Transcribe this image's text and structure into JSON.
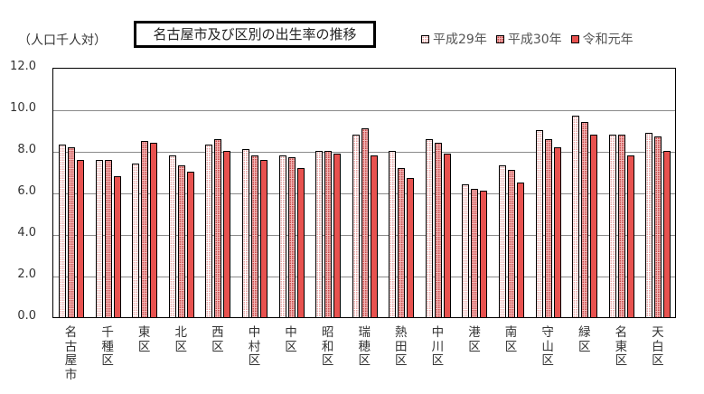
{
  "chart_data": {
    "type": "bar",
    "title": "名古屋市及び区別の出生率の推移",
    "ylabel": "（人口千人対）",
    "xlabel": "",
    "ylim": [
      0,
      12
    ],
    "yticks": [
      "0.0",
      "2.0",
      "4.0",
      "6.0",
      "8.0",
      "10.0",
      "12.0"
    ],
    "grid": true,
    "legend_position": "top-right",
    "categories": [
      "名古屋市",
      "千種区",
      "東区",
      "北区",
      "西区",
      "中村区",
      "中区",
      "昭和区",
      "瑞穂区",
      "熱田区",
      "中川区",
      "港区",
      "南区",
      "守山区",
      "緑区",
      "名東区",
      "天白区"
    ],
    "series": [
      {
        "name": "平成29年",
        "values": [
          8.3,
          7.6,
          7.4,
          7.8,
          8.3,
          8.1,
          7.8,
          8.0,
          8.8,
          8.0,
          8.6,
          6.4,
          7.3,
          9.0,
          9.7,
          8.8,
          8.9
        ]
      },
      {
        "name": "平成30年",
        "values": [
          8.2,
          7.6,
          8.5,
          7.3,
          8.6,
          7.8,
          7.7,
          8.0,
          9.1,
          7.2,
          8.4,
          6.2,
          7.1,
          8.6,
          9.4,
          8.8,
          8.7
        ]
      },
      {
        "name": "令和元年",
        "values": [
          7.6,
          6.8,
          8.4,
          7.0,
          8.0,
          7.6,
          7.2,
          7.9,
          7.8,
          6.7,
          7.9,
          6.1,
          6.5,
          8.2,
          8.8,
          7.8,
          8.0
        ]
      }
    ]
  },
  "colors": {
    "series_a_bg": "#ffffff",
    "series_b_bg": "#f3b8b8",
    "series_c_bg": "#e8524f",
    "grid": "#8a8a8a"
  }
}
